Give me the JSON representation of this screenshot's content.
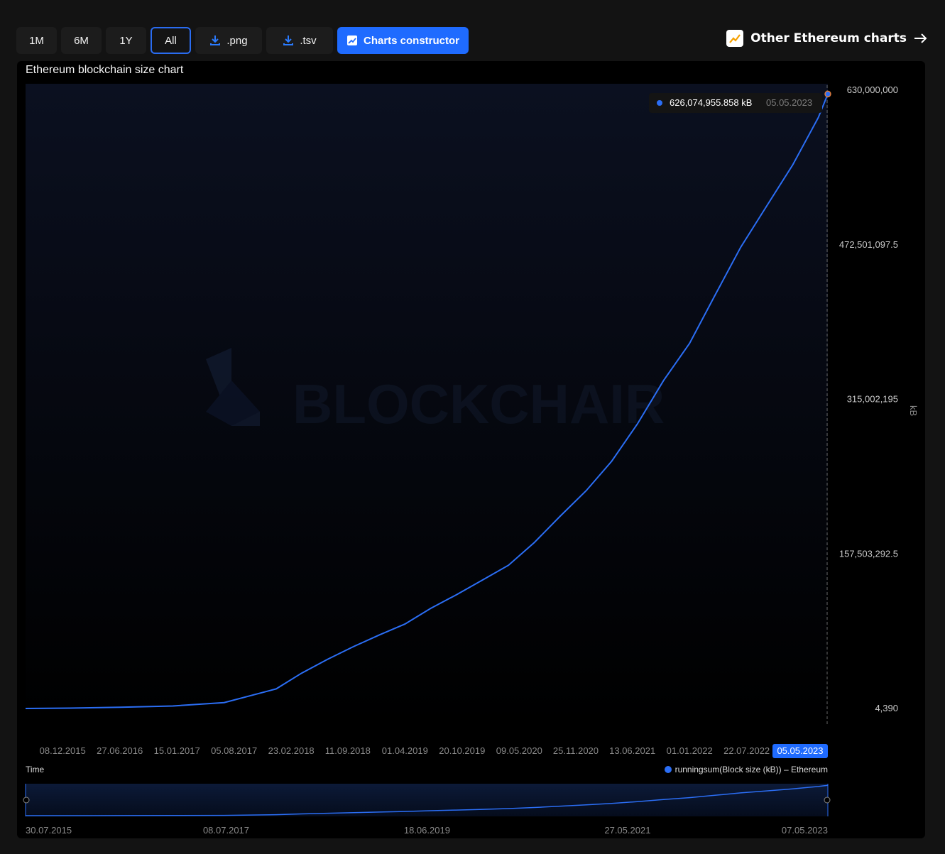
{
  "toolbar": {
    "ranges": [
      "1M",
      "6M",
      "1Y",
      "All"
    ],
    "active_range": "All",
    "png_label": ".png",
    "tsv_label": ".tsv",
    "constructor_label": "Charts constructor"
  },
  "other_charts_label": "Other Ethereum charts",
  "colors": {
    "accent": "#1f6bff",
    "line": "#2b6ef5",
    "background": "#000000"
  },
  "watermark": "BLOCKCHAIR",
  "chart_data": {
    "type": "area",
    "title": "Ethereum blockchain size chart",
    "xlabel": "Time",
    "ylabel": "kB",
    "ylim": [
      4390,
      630000000
    ],
    "y_ticks": [
      "630,000,000",
      "472,501,097.5",
      "315,002,195",
      "157,503,292.5",
      "4,390"
    ],
    "x_ticks": [
      "08.12.2015",
      "27.06.2016",
      "15.01.2017",
      "05.08.2017",
      "23.02.2018",
      "11.09.2018",
      "01.04.2019",
      "20.10.2019",
      "09.05.2020",
      "25.11.2020",
      "13.06.2021",
      "01.01.2022",
      "22.07.2022"
    ],
    "x_range": [
      "30.07.2015",
      "05.05.2023"
    ],
    "highlighted_x": "05.05.2023",
    "tooltip": {
      "value": "626,074,955.858 kB",
      "date": "05.05.2023"
    },
    "legend": "runningsum(Block size (kB)) – Ethereum",
    "navigator_ticks": [
      "30.07.2015",
      "08.07.2017",
      "18.06.2019",
      "27.05.2021",
      "07.05.2023"
    ],
    "series": [
      {
        "name": "runningsum(Block size (kB)) – Ethereum",
        "x": [
          "30.07.2015",
          "01.01.2016",
          "01.07.2016",
          "01.01.2017",
          "01.07.2017",
          "01.01.2018",
          "01.04.2018",
          "01.07.2018",
          "01.10.2018",
          "01.01.2019",
          "01.04.2019",
          "01.07.2019",
          "01.10.2019",
          "01.01.2020",
          "01.04.2020",
          "01.07.2020",
          "01.10.2020",
          "01.01.2021",
          "01.04.2021",
          "01.07.2021",
          "01.10.2021",
          "01.01.2022",
          "01.04.2022",
          "01.07.2022",
          "01.10.2022",
          "01.01.2023",
          "01.04.2023",
          "05.05.2023"
        ],
        "values": [
          4390,
          400000,
          1200000,
          2500000,
          6000000,
          20000000,
          36000000,
          50000000,
          63000000,
          75000000,
          86000000,
          102000000,
          116000000,
          131000000,
          146000000,
          169000000,
          196000000,
          222000000,
          252000000,
          290000000,
          334000000,
          372000000,
          421000000,
          470000000,
          512000000,
          554000000,
          602000000,
          626074955.858
        ]
      }
    ]
  }
}
